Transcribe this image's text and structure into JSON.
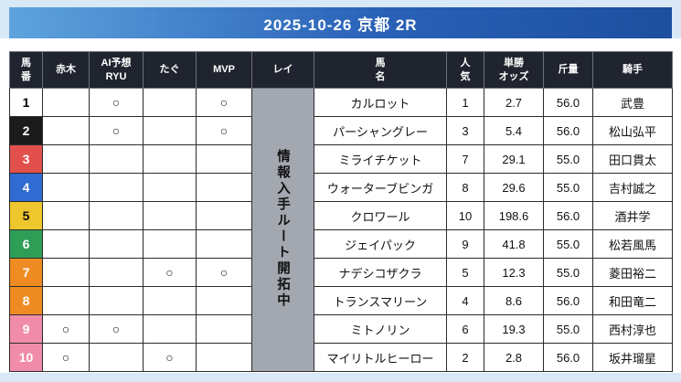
{
  "banner": {
    "title": "2025-10-26 京都 2R"
  },
  "colors": {
    "banner_gradient_start": "#5ea3dd",
    "banner_gradient_end": "#1d4f9e",
    "page_background": "#d9e8f6",
    "header_background": "#20242e",
    "rei_column_background": "#a3a8b0"
  },
  "table": {
    "headers": [
      {
        "id": "umaban",
        "label": "馬\n番"
      },
      {
        "id": "akagi",
        "label": "赤木"
      },
      {
        "id": "ai-yoso-ryu",
        "label": "AI予想\nRYU"
      },
      {
        "id": "tagu",
        "label": "たぐ"
      },
      {
        "id": "mvp",
        "label": "MVP"
      },
      {
        "id": "rei",
        "label": "レイ"
      },
      {
        "id": "bamei",
        "label": "馬\n名"
      },
      {
        "id": "ninki",
        "label": "人\n気"
      },
      {
        "id": "tansho-odds",
        "label": "単勝\nオッズ"
      },
      {
        "id": "kinryo",
        "label": "斤量"
      },
      {
        "id": "kishu",
        "label": "騎手"
      }
    ],
    "rei_note": "情報入手ルート開拓中",
    "mark_symbol": "○",
    "rows": [
      {
        "num": "1",
        "frame_bg": "#ffffff",
        "frame_fg": "#000000",
        "akagi": "",
        "ai": "○",
        "tagu": "",
        "mvp": "○",
        "name": "カルロット",
        "ninki": "1",
        "odds": "2.7",
        "kinryo": "56.0",
        "jockey": "武豊"
      },
      {
        "num": "2",
        "frame_bg": "#1b1b1b",
        "frame_fg": "#ffffff",
        "akagi": "",
        "ai": "○",
        "tagu": "",
        "mvp": "○",
        "name": "パーシャングレー",
        "ninki": "3",
        "odds": "5.4",
        "kinryo": "56.0",
        "jockey": "松山弘平"
      },
      {
        "num": "3",
        "frame_bg": "#e2504e",
        "frame_fg": "#ffffff",
        "akagi": "",
        "ai": "",
        "tagu": "",
        "mvp": "",
        "name": "ミライチケット",
        "ninki": "7",
        "odds": "29.1",
        "kinryo": "55.0",
        "jockey": "田口貫太"
      },
      {
        "num": "4",
        "frame_bg": "#2f6bd0",
        "frame_fg": "#ffffff",
        "akagi": "",
        "ai": "",
        "tagu": "",
        "mvp": "",
        "name": "ウォーターブビンガ",
        "ninki": "8",
        "odds": "29.6",
        "kinryo": "55.0",
        "jockey": "吉村誠之"
      },
      {
        "num": "5",
        "frame_bg": "#eec72e",
        "frame_fg": "#111111",
        "akagi": "",
        "ai": "",
        "tagu": "",
        "mvp": "",
        "name": "クロワール",
        "ninki": "10",
        "odds": "198.6",
        "kinryo": "56.0",
        "jockey": "酒井学"
      },
      {
        "num": "6",
        "frame_bg": "#2e9e57",
        "frame_fg": "#ffffff",
        "akagi": "",
        "ai": "",
        "tagu": "",
        "mvp": "",
        "name": "ジェイパック",
        "ninki": "9",
        "odds": "41.8",
        "kinryo": "55.0",
        "jockey": "松若風馬"
      },
      {
        "num": "7",
        "frame_bg": "#ee8c23",
        "frame_fg": "#ffffff",
        "akagi": "",
        "ai": "",
        "tagu": "○",
        "mvp": "○",
        "name": "ナデシコザクラ",
        "ninki": "5",
        "odds": "12.3",
        "kinryo": "55.0",
        "jockey": "菱田裕二"
      },
      {
        "num": "8",
        "frame_bg": "#ee8c23",
        "frame_fg": "#ffffff",
        "akagi": "",
        "ai": "",
        "tagu": "",
        "mvp": "",
        "name": "トランスマリーン",
        "ninki": "4",
        "odds": "8.6",
        "kinryo": "56.0",
        "jockey": "和田竜二"
      },
      {
        "num": "9",
        "frame_bg": "#f08caa",
        "frame_fg": "#ffffff",
        "akagi": "○",
        "ai": "○",
        "tagu": "",
        "mvp": "",
        "name": "ミトノリン",
        "ninki": "6",
        "odds": "19.3",
        "kinryo": "55.0",
        "jockey": "西村淳也"
      },
      {
        "num": "10",
        "frame_bg": "#f08caa",
        "frame_fg": "#ffffff",
        "akagi": "○",
        "ai": "",
        "tagu": "○",
        "mvp": "",
        "name": "マイリトルヒーロー",
        "ninki": "2",
        "odds": "2.8",
        "kinryo": "56.0",
        "jockey": "坂井瑠星"
      }
    ]
  }
}
